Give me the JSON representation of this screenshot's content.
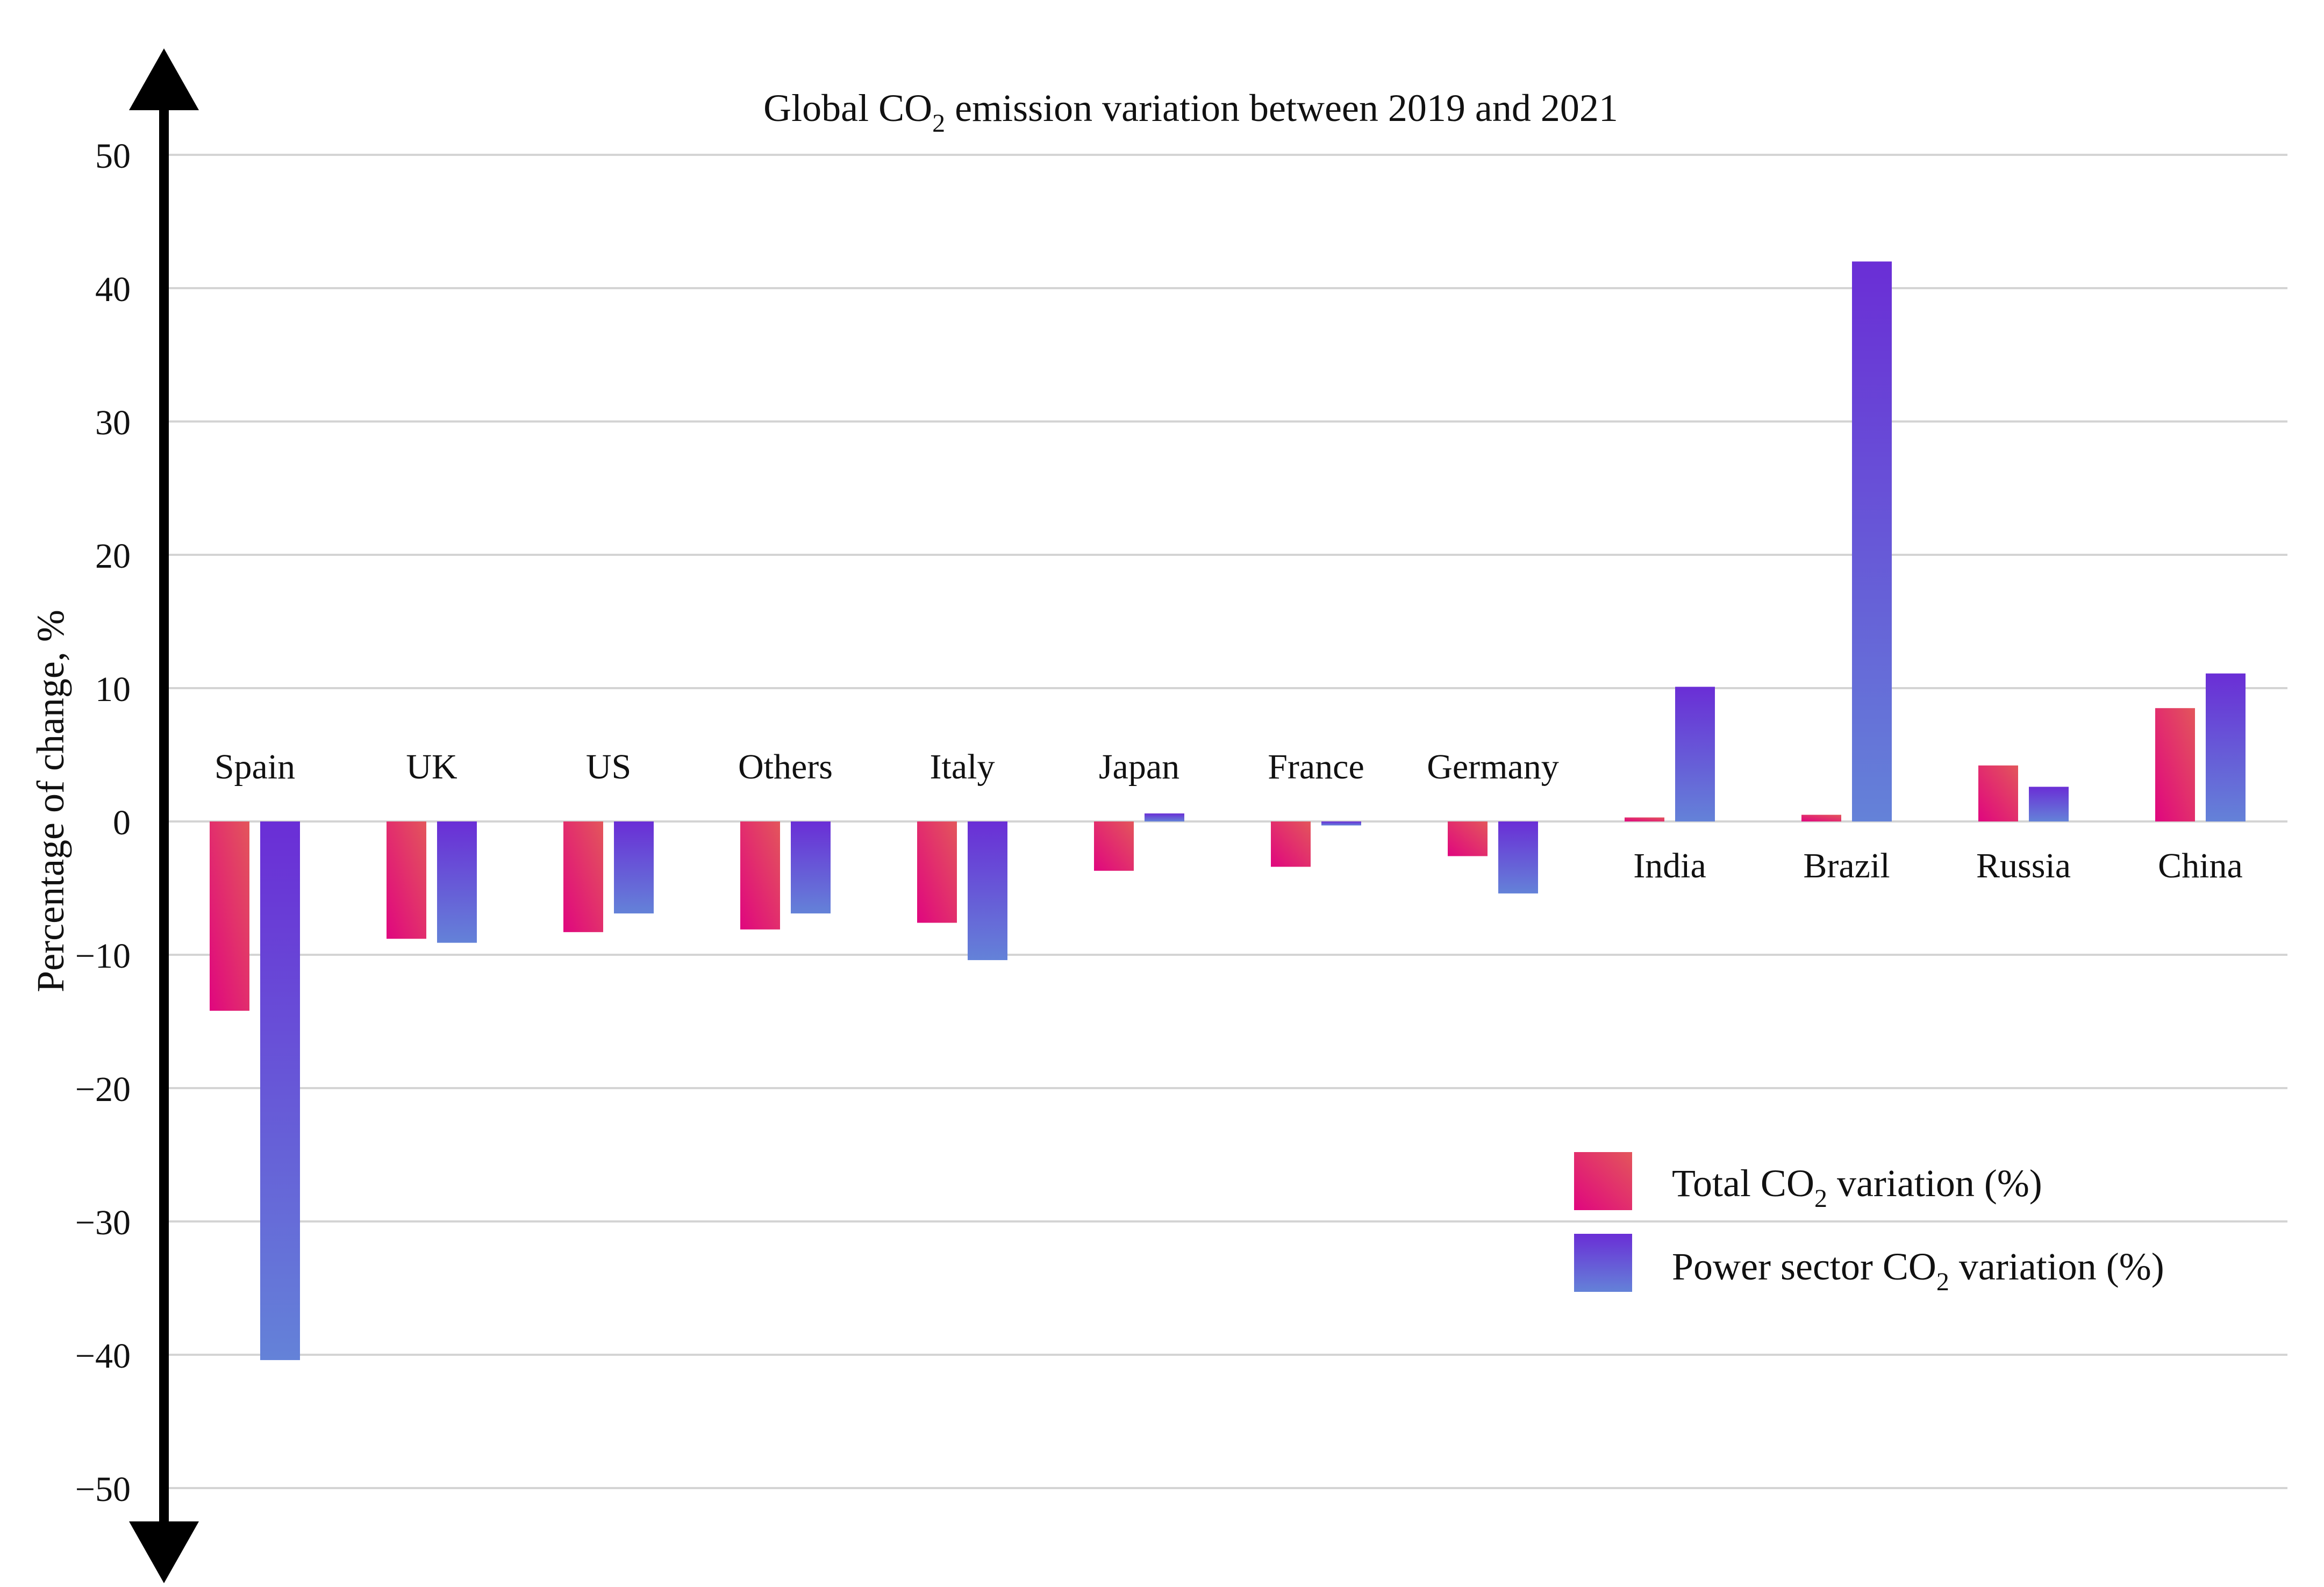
{
  "chart_data": {
    "type": "bar",
    "title_prefix": "Global CO",
    "title_sub": "2",
    "title_suffix": " emission variation between 2019 and 2021",
    "ylabel": "Percentage of change, %",
    "xlabel": "",
    "ylim": [
      -50,
      50
    ],
    "yticks": [
      {
        "value": 50,
        "label": "50"
      },
      {
        "value": 40,
        "label": "40"
      },
      {
        "value": 30,
        "label": "30"
      },
      {
        "value": 20,
        "label": "20"
      },
      {
        "value": 10,
        "label": "10"
      },
      {
        "value": 0,
        "label": "0"
      },
      {
        "value": -10,
        "label": "−10"
      },
      {
        "value": -20,
        "label": "−20"
      },
      {
        "value": -30,
        "label": "−30"
      },
      {
        "value": -40,
        "label": "−40"
      },
      {
        "value": -50,
        "label": "−50"
      }
    ],
    "categories": [
      "Spain",
      "UK",
      "US",
      "Others",
      "Italy",
      "Japan",
      "France",
      "Germany",
      "India",
      "Brazil",
      "Russia",
      "China"
    ],
    "series": [
      {
        "name": "Total CO2 variation (%)",
        "legend_prefix": "Total CO",
        "legend_sub": "2",
        "legend_suffix": " variation (%)",
        "colors": [
          "#e0067f",
          "#e3565b"
        ],
        "values": [
          -14.2,
          -8.8,
          -8.3,
          -8.1,
          -7.6,
          -3.7,
          -3.4,
          -2.6,
          0.3,
          0.5,
          4.2,
          8.5
        ]
      },
      {
        "name": "Power sector CO2 variation (%)",
        "legend_prefix": "Power sector CO",
        "legend_sub": "2",
        "legend_suffix": " variation (%)",
        "colors": [
          "#6a2ed6",
          "#6482d8"
        ],
        "values": [
          -40.4,
          -9.1,
          -6.9,
          -6.9,
          -10.4,
          0.6,
          -0.3,
          -5.4,
          10.1,
          42.0,
          2.6,
          11.1
        ]
      }
    ],
    "grid": true,
    "legend_position": "bottom-right"
  }
}
